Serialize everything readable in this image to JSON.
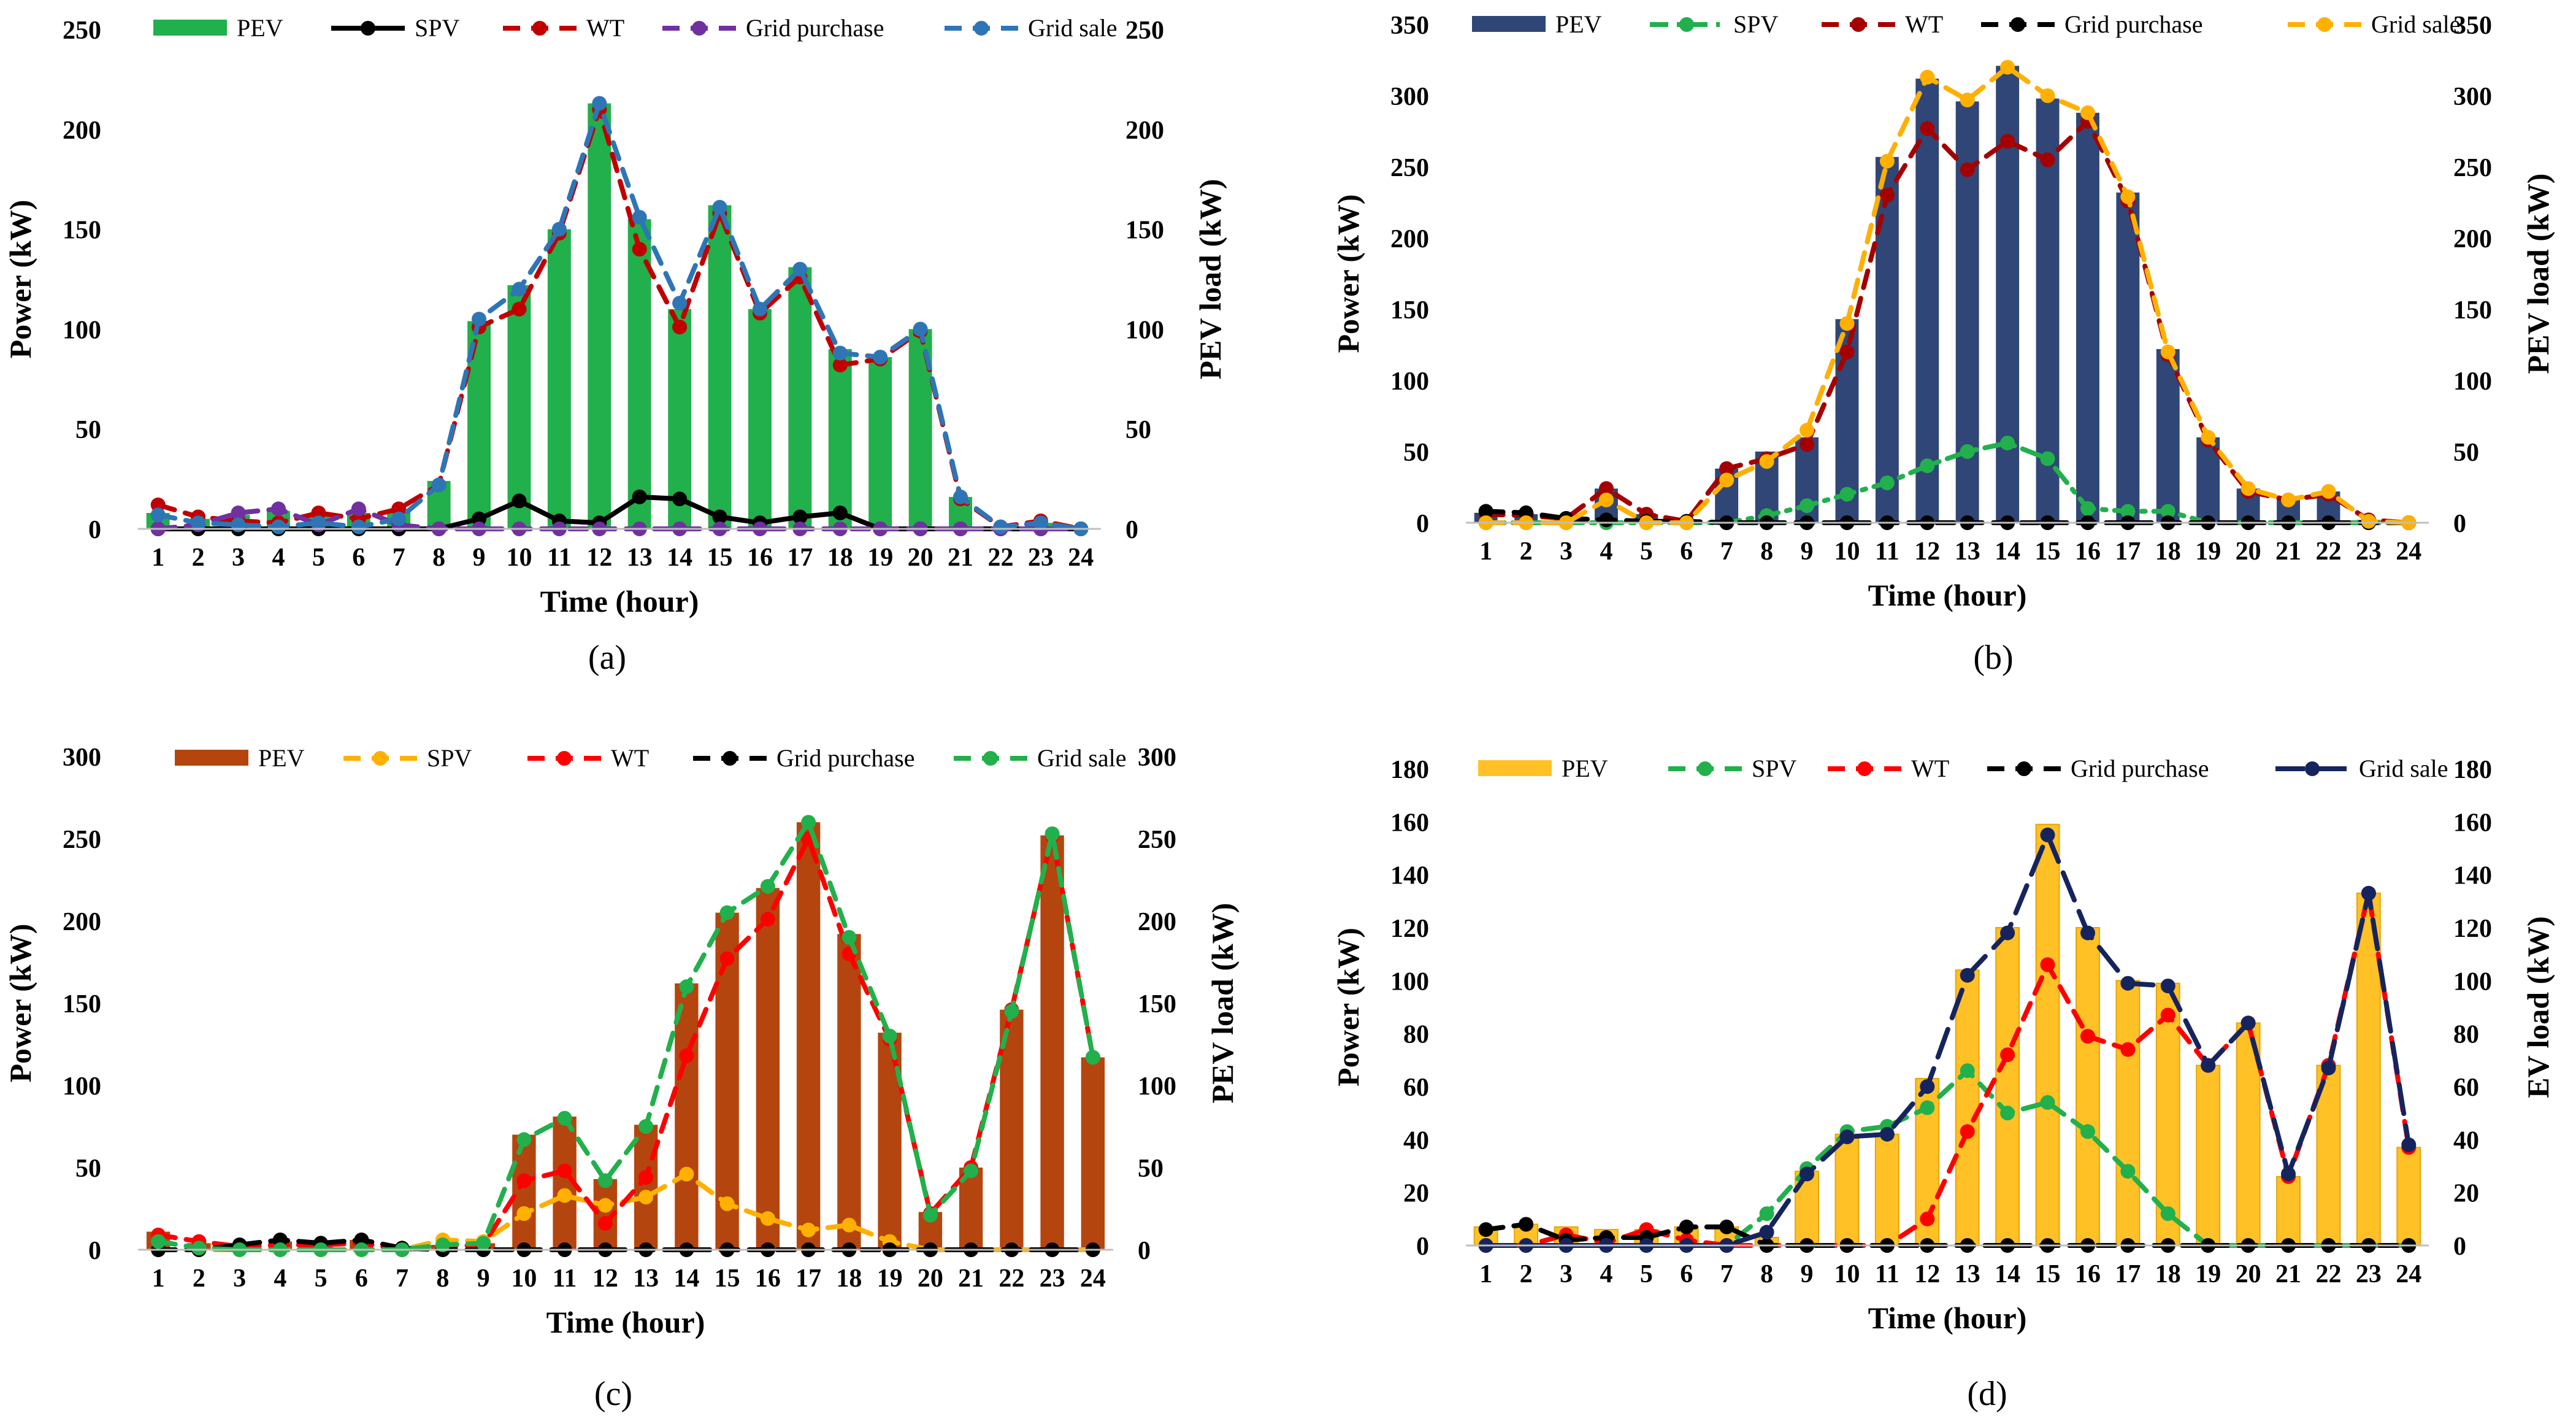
{
  "figure": {
    "background": "#ffffff",
    "tick_color": "#000000",
    "gridlines": false
  },
  "chart_data": [
    {
      "type": "bar",
      "panel": "a",
      "caption": "(a)",
      "x": [
        "1",
        "2",
        "3",
        "4",
        "5",
        "6",
        "7",
        "8",
        "9",
        "10",
        "11",
        "12",
        "13",
        "14",
        "15",
        "16",
        "17",
        "18",
        "19",
        "20",
        "21",
        "22",
        "23",
        "24"
      ],
      "xlabel": "Time (hour)",
      "ylabel": "Power (kW)",
      "y2label": "PEV load (kW)",
      "ylim": [
        0,
        250
      ],
      "yticks": [
        0,
        50,
        100,
        150,
        200,
        250
      ],
      "bar_color": "#21b04b",
      "legend_placement": "top",
      "series": [
        {
          "name": "PEV",
          "kind": "bar",
          "color": "#21b04b",
          "values": [
            8,
            5,
            7,
            9,
            7,
            8,
            9,
            24,
            104,
            122,
            150,
            213,
            155,
            110,
            162,
            110,
            131,
            90,
            86,
            100,
            16,
            1,
            3,
            0
          ]
        },
        {
          "name": "SPV",
          "kind": "line",
          "color": "#000000",
          "dash": "solid",
          "values": [
            0,
            0,
            0,
            0,
            0,
            0,
            0,
            0,
            5,
            14,
            4,
            3,
            16,
            15,
            6,
            3,
            6,
            8,
            0,
            0,
            0,
            0,
            0,
            0
          ]
        },
        {
          "name": "WT",
          "kind": "line",
          "color": "#c00000",
          "dash": "dash",
          "values": [
            12,
            6,
            4,
            3,
            8,
            5,
            10,
            22,
            101,
            110,
            148,
            210,
            140,
            101,
            158,
            108,
            126,
            82,
            85,
            99,
            15,
            1,
            4,
            0
          ]
        },
        {
          "name": "Grid purchase",
          "kind": "line",
          "color": "#7030a0",
          "dash": "dash",
          "values": [
            0,
            2,
            8,
            10,
            2,
            10,
            2,
            0,
            0,
            0,
            0,
            0,
            0,
            0,
            0,
            0,
            0,
            0,
            0,
            0,
            0,
            0,
            0,
            0
          ]
        },
        {
          "name": "Grid sale",
          "kind": "line",
          "color": "#2e75b6",
          "dash": "dash",
          "values": [
            7,
            3,
            2,
            1,
            3,
            1,
            5,
            22,
            105,
            120,
            150,
            213,
            156,
            113,
            161,
            110,
            130,
            88,
            86,
            100,
            16,
            1,
            3,
            0
          ]
        }
      ]
    },
    {
      "type": "bar",
      "panel": "b",
      "caption": "(b)",
      "x": [
        "1",
        "2",
        "3",
        "4",
        "5",
        "6",
        "7",
        "8",
        "9",
        "10",
        "11",
        "12",
        "13",
        "14",
        "15",
        "16",
        "17",
        "18",
        "19",
        "20",
        "21",
        "22",
        "23",
        "24"
      ],
      "xlabel": "Time (hour)",
      "ylabel": "Power (kW)",
      "y2label": "PEV load (kW)",
      "ylim": [
        0,
        350
      ],
      "yticks": [
        0,
        50,
        100,
        150,
        200,
        250,
        300,
        350
      ],
      "bar_color": "#2f4677",
      "legend_placement": "top",
      "series": [
        {
          "name": "PEV",
          "kind": "bar",
          "color": "#2f4677",
          "values": [
            7,
            6,
            4,
            24,
            6,
            2,
            38,
            50,
            60,
            143,
            257,
            312,
            296,
            321,
            298,
            288,
            232,
            122,
            60,
            24,
            18,
            22,
            2,
            0
          ]
        },
        {
          "name": "SPV",
          "kind": "line",
          "color": "#21b04b",
          "dash": "dashdot",
          "values": [
            0,
            0,
            0,
            0,
            0,
            0,
            0,
            5,
            12,
            20,
            28,
            40,
            50,
            56,
            45,
            10,
            8,
            8,
            0,
            0,
            0,
            0,
            0,
            0
          ]
        },
        {
          "name": "WT",
          "kind": "line",
          "color": "#a50000",
          "dash": "dash",
          "values": [
            6,
            5,
            3,
            24,
            6,
            1,
            38,
            45,
            55,
            120,
            230,
            277,
            248,
            268,
            255,
            282,
            226,
            118,
            58,
            22,
            16,
            20,
            2,
            0
          ]
        },
        {
          "name": "Grid purchase",
          "kind": "line",
          "color": "#000000",
          "dash": "dash",
          "values": [
            8,
            7,
            3,
            2,
            1,
            1,
            0,
            0,
            0,
            0,
            0,
            0,
            0,
            0,
            0,
            0,
            0,
            0,
            0,
            0,
            0,
            0,
            0,
            0
          ]
        },
        {
          "name": "Grid sale",
          "kind": "line",
          "color": "#ffb000",
          "dash": "dash",
          "values": [
            0,
            0,
            0,
            16,
            0,
            0,
            30,
            43,
            65,
            140,
            254,
            313,
            297,
            320,
            300,
            288,
            229,
            120,
            60,
            24,
            16,
            22,
            1,
            0
          ]
        }
      ]
    },
    {
      "type": "bar",
      "panel": "c",
      "caption": "(c)",
      "x": [
        "1",
        "2",
        "3",
        "4",
        "5",
        "6",
        "7",
        "8",
        "9",
        "10",
        "11",
        "12",
        "13",
        "14",
        "15",
        "16",
        "17",
        "18",
        "19",
        "20",
        "21",
        "22",
        "23",
        "24"
      ],
      "xlabel": "Time (hour)",
      "ylabel": "Power (kW)",
      "y2label": "PEV load (kW)",
      "ylim": [
        0,
        300
      ],
      "yticks": [
        0,
        50,
        100,
        150,
        200,
        250,
        300
      ],
      "bar_color": "#b4450f",
      "legend_placement": "top",
      "series": [
        {
          "name": "PEV",
          "kind": "bar",
          "color": "#b4450f",
          "values": [
            11,
            4,
            3,
            5,
            4,
            6,
            1,
            3,
            4,
            70,
            81,
            43,
            76,
            162,
            205,
            220,
            260,
            192,
            132,
            23,
            50,
            146,
            252,
            117
          ]
        },
        {
          "name": "SPV",
          "kind": "line",
          "color": "#ffb000",
          "dash": "dash",
          "values": [
            0,
            0,
            0,
            0,
            0,
            0,
            0,
            6,
            5,
            22,
            33,
            27,
            32,
            46,
            28,
            19,
            12,
            15,
            5,
            0,
            0,
            0,
            0,
            0
          ]
        },
        {
          "name": "WT",
          "kind": "line",
          "color": "#ff0000",
          "dash": "dash",
          "values": [
            9,
            5,
            2,
            3,
            3,
            4,
            0,
            2,
            3,
            42,
            48,
            16,
            44,
            118,
            177,
            201,
            250,
            180,
            128,
            22,
            50,
            146,
            252,
            117
          ]
        },
        {
          "name": "Grid purchase",
          "kind": "line",
          "color": "#000000",
          "dash": "dash",
          "values": [
            0,
            0,
            3,
            6,
            4,
            6,
            1,
            0,
            0,
            0,
            0,
            0,
            0,
            0,
            0,
            0,
            0,
            0,
            0,
            0,
            0,
            0,
            0,
            0
          ]
        },
        {
          "name": "Grid sale",
          "kind": "line",
          "color": "#21b04b",
          "dash": "dash",
          "values": [
            5,
            1,
            0,
            0,
            0,
            0,
            0,
            3,
            4,
            67,
            80,
            42,
            75,
            160,
            205,
            221,
            260,
            190,
            130,
            21,
            48,
            145,
            253,
            117
          ]
        }
      ]
    },
    {
      "type": "bar",
      "panel": "d",
      "caption": "(d)",
      "x": [
        "1",
        "2",
        "3",
        "4",
        "5",
        "6",
        "7",
        "8",
        "9",
        "10",
        "11",
        "12",
        "13",
        "14",
        "15",
        "16",
        "17",
        "18",
        "19",
        "20",
        "21",
        "22",
        "23",
        "24"
      ],
      "xlabel": "Time (hour)",
      "ylabel": "Power (kW)",
      "y2label": "EV load (kW)",
      "ylim": [
        0,
        180
      ],
      "yticks": [
        0,
        20,
        40,
        60,
        80,
        100,
        120,
        140,
        160,
        180
      ],
      "bar_color": "#ffc125",
      "legend_placement": "top",
      "series": [
        {
          "name": "PEV",
          "kind": "bar",
          "color": "#ffc125",
          "values": [
            7,
            8,
            7,
            6,
            6,
            7,
            7,
            3,
            28,
            42,
            42,
            63,
            104,
            120,
            159,
            120,
            100,
            99,
            68,
            84,
            26,
            68,
            133,
            37
          ]
        },
        {
          "name": "SPV",
          "kind": "line",
          "color": "#21b04b",
          "dash": "dash",
          "values": [
            0,
            0,
            0,
            0,
            0,
            0,
            0,
            12,
            29,
            43,
            45,
            52,
            66,
            50,
            54,
            43,
            28,
            12,
            0,
            0,
            0,
            0,
            0,
            0
          ]
        },
        {
          "name": "WT",
          "kind": "line",
          "color": "#ff0000",
          "dash": "dash",
          "values": [
            0,
            0,
            4,
            1,
            6,
            2,
            0,
            0,
            0,
            0,
            0,
            10,
            43,
            72,
            106,
            79,
            74,
            87,
            68,
            84,
            26,
            68,
            133,
            37
          ]
        },
        {
          "name": "Grid purchase",
          "kind": "line",
          "color": "#000000",
          "dash": "dash",
          "values": [
            6,
            8,
            2,
            3,
            3,
            7,
            7,
            0,
            0,
            0,
            0,
            0,
            0,
            0,
            0,
            0,
            0,
            0,
            0,
            0,
            0,
            0,
            0,
            0
          ]
        },
        {
          "name": "Grid sale",
          "kind": "line",
          "color": "#16245e",
          "dash": "longdash",
          "values": [
            0,
            0,
            0,
            0,
            0,
            0,
            0,
            5,
            27,
            41,
            42,
            60,
            102,
            118,
            155,
            118,
            99,
            98,
            68,
            84,
            27,
            67,
            133,
            38
          ]
        }
      ]
    }
  ]
}
